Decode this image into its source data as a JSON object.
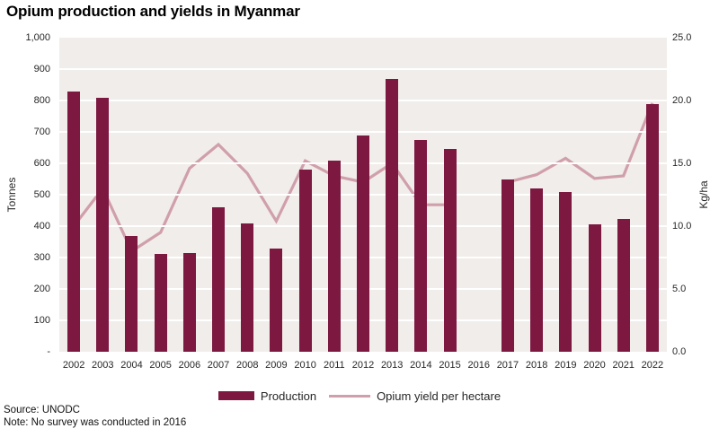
{
  "title": "Opium production and yields in Myanmar",
  "footer": {
    "source": "Source: UNODC",
    "note": "Note: No survey was conducted in 2016"
  },
  "legend": {
    "items": [
      {
        "label": "Production",
        "type": "bar"
      },
      {
        "label": "Opium yield per hectare",
        "type": "line"
      }
    ]
  },
  "colors": {
    "bar": "#7d1941",
    "line": "#d09fac",
    "plot_bg": "#f1edea",
    "grid": "#ffffff",
    "text": "#262626"
  },
  "chart_data": {
    "type": "bar",
    "subtype": "bar+line dual axis, gap in 2016 (no survey)",
    "title": "Opium production and yields in Myanmar",
    "categories": [
      "2002",
      "2003",
      "2004",
      "2005",
      "2006",
      "2007",
      "2008",
      "2009",
      "2010",
      "2011",
      "2012",
      "2013",
      "2014",
      "2015",
      "2016",
      "2017",
      "2018",
      "2019",
      "2020",
      "2021",
      "2022"
    ],
    "series": [
      {
        "name": "Production",
        "type": "bar",
        "axis": "left",
        "unit": "Tonnes",
        "values": [
          828,
          810,
          370,
          312,
          315,
          460,
          410,
          330,
          580,
          610,
          690,
          870,
          673,
          647,
          null,
          550,
          520,
          508,
          405,
          423,
          790
        ]
      },
      {
        "name": "Opium yield per hectare",
        "type": "line",
        "axis": "right",
        "unit": "Kg/ha",
        "values": [
          10.0,
          13.0,
          8.0,
          9.5,
          14.6,
          16.5,
          14.2,
          10.4,
          15.2,
          14.0,
          13.5,
          15.0,
          11.7,
          11.7,
          null,
          13.5,
          14.1,
          15.4,
          13.8,
          14.0,
          19.8
        ]
      }
    ],
    "left_axis": {
      "label": "Tonnes",
      "min": 0,
      "max": 1000,
      "tick_step": 100,
      "ticks": [
        "1,000",
        "900",
        "800",
        "700",
        "600",
        "500",
        "400",
        "300",
        "200",
        "100",
        "-"
      ]
    },
    "right_axis": {
      "label": "Kg/ha",
      "min": 0,
      "max": 25,
      "tick_step": 5,
      "ticks": [
        "25.0",
        "20.0",
        "15.0",
        "10.0",
        "5.0",
        "0.0"
      ]
    },
    "grid": true,
    "legend_position": "bottom"
  }
}
